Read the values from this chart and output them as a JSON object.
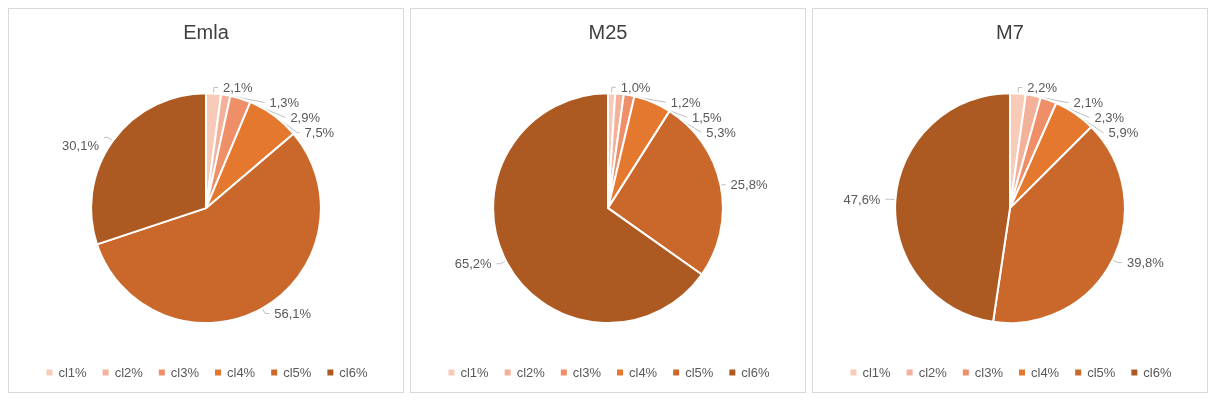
{
  "chart_data": [
    {
      "type": "pie",
      "title": "Emla",
      "categories": [
        "cl1%",
        "cl2%",
        "cl3%",
        "cl4%",
        "cl5%",
        "cl6%"
      ],
      "values": [
        2.1,
        1.3,
        2.9,
        7.5,
        56.1,
        30.1
      ],
      "value_labels": [
        "2,1%",
        "1,3%",
        "2,9%",
        "7,5%",
        "56,1%",
        "30,1%"
      ],
      "colors": [
        "#f8cbb9",
        "#f4b19a",
        "#ef8f67",
        "#e5782f",
        "#c9682a",
        "#ad5a22"
      ],
      "legend": "bottom"
    },
    {
      "type": "pie",
      "title": "M25",
      "categories": [
        "cl1%",
        "cl2%",
        "cl3%",
        "cl4%",
        "cl5%",
        "cl6%"
      ],
      "values": [
        1.0,
        1.2,
        1.5,
        5.3,
        25.8,
        65.2
      ],
      "value_labels": [
        "1,0%",
        "1,2%",
        "1,5%",
        "5,3%",
        "25,8%",
        "65,2%"
      ],
      "colors": [
        "#f8cbb9",
        "#f4b19a",
        "#ef8f67",
        "#e5782f",
        "#c9682a",
        "#ad5a22"
      ],
      "legend": "bottom"
    },
    {
      "type": "pie",
      "title": "M7",
      "categories": [
        "cl1%",
        "cl2%",
        "cl3%",
        "cl4%",
        "cl5%",
        "cl6%"
      ],
      "values": [
        2.2,
        2.1,
        2.3,
        5.9,
        39.8,
        47.6
      ],
      "value_labels": [
        "2,2%",
        "2,1%",
        "2,3%",
        "5,9%",
        "39,8%",
        "47,6%"
      ],
      "colors": [
        "#f8cbb9",
        "#f4b19a",
        "#ef8f67",
        "#e5782f",
        "#c9682a",
        "#ad5a22"
      ],
      "legend": "bottom"
    }
  ]
}
